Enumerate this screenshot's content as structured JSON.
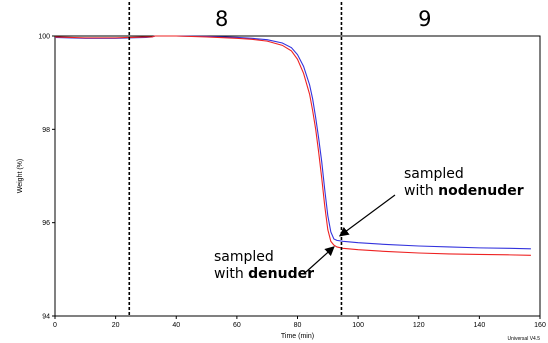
{
  "chart_data": {
    "type": "line",
    "title": "",
    "xlabel": "Time (min)",
    "ylabel": "Weight (%)",
    "xlim": [
      0,
      160
    ],
    "ylim": [
      94,
      100
    ],
    "x_ticks": [
      0,
      20,
      40,
      60,
      80,
      100,
      120,
      140,
      160
    ],
    "y_ticks": [
      94,
      96,
      98,
      100
    ],
    "grid": false,
    "series": [
      {
        "color": "#3333dd",
        "x": [
          0,
          10,
          20,
          25,
          30,
          32,
          33,
          40,
          50,
          60,
          65,
          70,
          75,
          78,
          80,
          82,
          84,
          85,
          86,
          87,
          88,
          89,
          90,
          91,
          92,
          93,
          95,
          100,
          110,
          120,
          130,
          140,
          150,
          157
        ],
        "y": [
          99.97,
          99.95,
          99.95,
          99.96,
          99.97,
          99.98,
          100.0,
          100.0,
          99.99,
          99.97,
          99.95,
          99.92,
          99.85,
          99.75,
          99.6,
          99.35,
          98.95,
          98.65,
          98.25,
          97.8,
          97.3,
          96.7,
          96.15,
          95.8,
          95.65,
          95.62,
          95.6,
          95.57,
          95.53,
          95.5,
          95.48,
          95.46,
          95.45,
          95.44
        ]
      },
      {
        "color": "#ee2222",
        "x": [
          0,
          10,
          20,
          25,
          30,
          32,
          33,
          40,
          50,
          60,
          65,
          70,
          75,
          78,
          80,
          82,
          84,
          85,
          86,
          87,
          88,
          89,
          90,
          91,
          92,
          93,
          95,
          100,
          110,
          120,
          130,
          140,
          150,
          157
        ],
        "y": [
          99.98,
          99.96,
          99.96,
          99.97,
          99.98,
          99.98,
          100.0,
          100.0,
          99.98,
          99.95,
          99.93,
          99.89,
          99.8,
          99.68,
          99.5,
          99.2,
          98.75,
          98.4,
          98.0,
          97.5,
          96.95,
          96.35,
          95.85,
          95.6,
          95.52,
          95.48,
          95.45,
          95.42,
          95.38,
          95.35,
          95.33,
          95.32,
          95.31,
          95.3
        ]
      }
    ],
    "dividers_x": [
      24.5,
      94.5
    ],
    "regions": [
      {
        "label": "8",
        "x": 55
      },
      {
        "label": "9",
        "x": 122
      }
    ],
    "annotations": [
      {
        "lines": [
          [
            "sampled",
            ""
          ],
          [
            "with ",
            "no"
          ],
          [
            "",
            "denuder"
          ]
        ],
        "target": [
          94,
          95.72
        ]
      },
      {
        "lines": [
          [
            "sampled",
            ""
          ],
          [
            "with ",
            "denuder"
          ]
        ],
        "target": [
          92,
          95.48
        ]
      }
    ],
    "footer": "Universal V4.5"
  }
}
